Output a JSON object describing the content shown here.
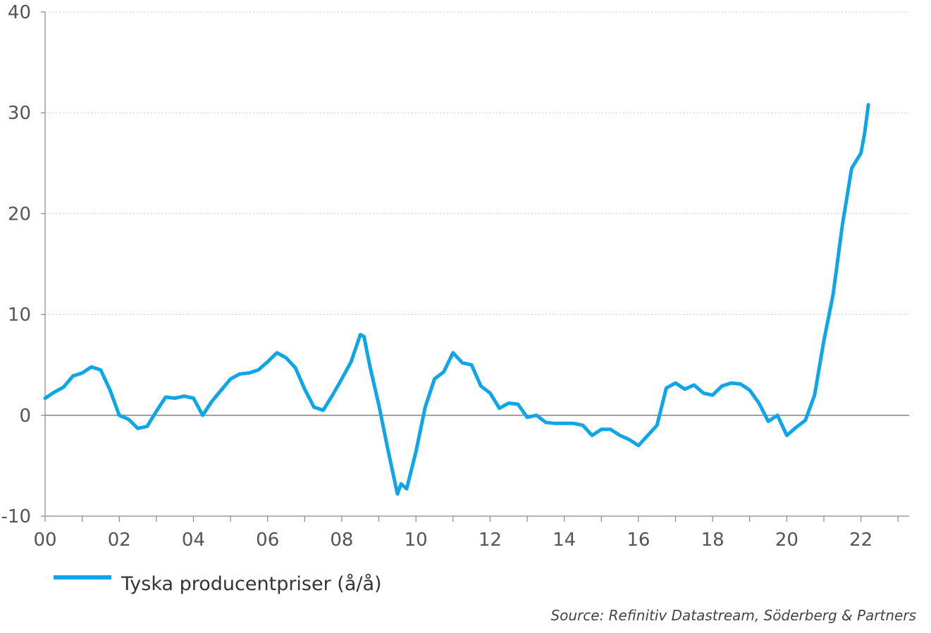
{
  "chart_data": {
    "type": "line",
    "title": "",
    "xlabel": "",
    "ylabel": "",
    "xlim": [
      2000,
      2023.3
    ],
    "ylim": [
      -10,
      40
    ],
    "y_ticks": [
      "40",
      "30",
      "20",
      "10",
      "0",
      "-10"
    ],
    "x_tick_labels": [
      "00",
      "02",
      "04",
      "06",
      "08",
      "10",
      "12",
      "14",
      "16",
      "18",
      "20",
      "22"
    ],
    "grid": "horizontal dotted",
    "legend_position": "bottom-left",
    "series": [
      {
        "name": "Tyska producentpriser (å/å)",
        "color": "#0ea5e9",
        "x": [
          2000.0,
          2000.25,
          2000.5,
          2000.75,
          2001.0,
          2001.25,
          2001.5,
          2001.75,
          2002.0,
          2002.25,
          2002.5,
          2002.75,
          2003.0,
          2003.25,
          2003.5,
          2003.75,
          2004.0,
          2004.25,
          2004.5,
          2004.75,
          2005.0,
          2005.25,
          2005.5,
          2005.75,
          2006.0,
          2006.25,
          2006.5,
          2006.75,
          2007.0,
          2007.25,
          2007.5,
          2007.75,
          2008.0,
          2008.25,
          2008.5,
          2008.6,
          2008.75,
          2009.0,
          2009.25,
          2009.5,
          2009.6,
          2009.75,
          2010.0,
          2010.25,
          2010.5,
          2010.75,
          2011.0,
          2011.25,
          2011.5,
          2011.75,
          2012.0,
          2012.25,
          2012.5,
          2012.75,
          2013.0,
          2013.25,
          2013.5,
          2013.75,
          2014.0,
          2014.25,
          2014.5,
          2014.75,
          2015.0,
          2015.25,
          2015.5,
          2015.75,
          2016.0,
          2016.25,
          2016.5,
          2016.75,
          2017.0,
          2017.25,
          2017.5,
          2017.75,
          2018.0,
          2018.25,
          2018.5,
          2018.75,
          2019.0,
          2019.25,
          2019.5,
          2019.75,
          2020.0,
          2020.25,
          2020.5,
          2020.75,
          2021.0,
          2021.25,
          2021.5,
          2021.75,
          2022.0,
          2022.1,
          2022.2
        ],
        "values": [
          1.7,
          2.3,
          2.8,
          3.9,
          4.2,
          4.8,
          4.5,
          2.5,
          0.0,
          -0.4,
          -1.3,
          -1.1,
          0.4,
          1.8,
          1.7,
          1.9,
          1.7,
          0.0,
          1.4,
          2.5,
          3.6,
          4.1,
          4.2,
          4.5,
          5.3,
          6.2,
          5.7,
          4.7,
          2.6,
          0.8,
          0.5,
          2.0,
          3.6,
          5.3,
          8.0,
          7.8,
          5.0,
          1.0,
          -3.5,
          -7.8,
          -6.8,
          -7.3,
          -3.6,
          0.8,
          3.6,
          4.3,
          6.2,
          5.2,
          5.0,
          2.9,
          2.2,
          0.7,
          1.2,
          1.1,
          -0.2,
          0.0,
          -0.7,
          -0.8,
          -0.8,
          -0.8,
          -1.0,
          -2.0,
          -1.4,
          -1.4,
          -2.0,
          -2.4,
          -3.0,
          -2.0,
          -1.0,
          2.7,
          3.2,
          2.6,
          3.0,
          2.2,
          2.0,
          2.9,
          3.2,
          3.1,
          2.5,
          1.2,
          -0.6,
          0.0,
          -2.0,
          -1.2,
          -0.5,
          2.0,
          7.4,
          12.0,
          18.9,
          24.5,
          26.0,
          28.0,
          30.8
        ]
      }
    ],
    "annotations": [
      "Source: Refinitiv Datastream, Söderberg & Partners"
    ]
  }
}
